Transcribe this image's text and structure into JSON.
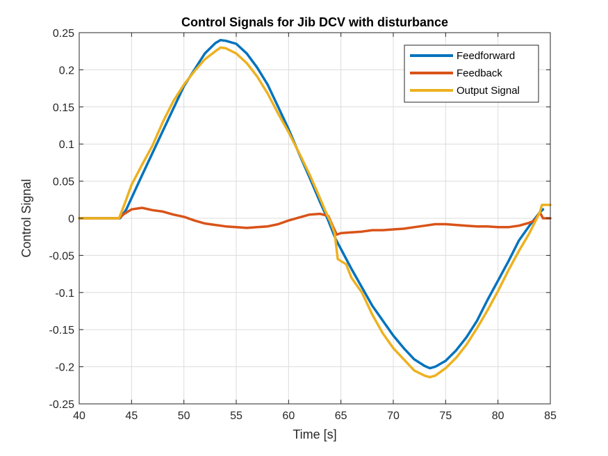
{
  "chart_data": {
    "type": "line",
    "title": "Control Signals for Jib DCV with disturbance",
    "xlabel": "Time [s]",
    "ylabel": "Control Signal",
    "xlim": [
      40,
      85
    ],
    "ylim": [
      -0.25,
      0.25
    ],
    "xticks": [
      40,
      45,
      50,
      55,
      60,
      65,
      70,
      75,
      80,
      85
    ],
    "yticks": [
      -0.25,
      -0.2,
      -0.15,
      -0.1,
      -0.05,
      0,
      0.05,
      0.1,
      0.15,
      0.2,
      0.25
    ],
    "ytick_labels": [
      "-0.25",
      "-0.2",
      "-0.15",
      "-0.1",
      "-0.05",
      "0",
      "0.05",
      "0.1",
      "0.15",
      "0.2",
      "0.25"
    ],
    "xtick_labels": [
      "40",
      "45",
      "50",
      "55",
      "60",
      "65",
      "70",
      "75",
      "80",
      "85"
    ],
    "grid": true,
    "legend_position": "top-right",
    "series": [
      {
        "name": "Feedforward",
        "color": "#0072BD",
        "points": [
          [
            40,
            0
          ],
          [
            43.9,
            0
          ],
          [
            44.5,
            0.012
          ],
          [
            46,
            0.058
          ],
          [
            48,
            0.118
          ],
          [
            50,
            0.178
          ],
          [
            51,
            0.2
          ],
          [
            52,
            0.222
          ],
          [
            53,
            0.236
          ],
          [
            53.5,
            0.24
          ],
          [
            54,
            0.239
          ],
          [
            55,
            0.235
          ],
          [
            56,
            0.222
          ],
          [
            57,
            0.203
          ],
          [
            58,
            0.18
          ],
          [
            59,
            0.15
          ],
          [
            60,
            0.12
          ],
          [
            61,
            0.087
          ],
          [
            62,
            0.055
          ],
          [
            63,
            0.022
          ],
          [
            63.7,
            0
          ],
          [
            64.5,
            -0.028
          ],
          [
            66,
            -0.068
          ],
          [
            68,
            -0.118
          ],
          [
            70,
            -0.158
          ],
          [
            71,
            -0.175
          ],
          [
            72,
            -0.19
          ],
          [
            73,
            -0.199
          ],
          [
            73.5,
            -0.202
          ],
          [
            74,
            -0.2
          ],
          [
            75,
            -0.192
          ],
          [
            76,
            -0.178
          ],
          [
            77,
            -0.16
          ],
          [
            78,
            -0.138
          ],
          [
            79,
            -0.11
          ],
          [
            80,
            -0.084
          ],
          [
            81,
            -0.058
          ],
          [
            82,
            -0.03
          ],
          [
            83,
            -0.01
          ],
          [
            84,
            0.008
          ],
          [
            84.3,
            0.012
          ]
        ]
      },
      {
        "name": "Feedback",
        "color": "#D95319",
        "points": [
          [
            40,
            0
          ],
          [
            43.8,
            0
          ],
          [
            44.3,
            0.006
          ],
          [
            45,
            0.012
          ],
          [
            46,
            0.014
          ],
          [
            47,
            0.011
          ],
          [
            48,
            0.009
          ],
          [
            49,
            0.005
          ],
          [
            50,
            0.002
          ],
          [
            51,
            -0.003
          ],
          [
            52,
            -0.007
          ],
          [
            53,
            -0.009
          ],
          [
            54,
            -0.011
          ],
          [
            55,
            -0.012
          ],
          [
            56,
            -0.013
          ],
          [
            57,
            -0.012
          ],
          [
            58,
            -0.011
          ],
          [
            59,
            -0.008
          ],
          [
            60,
            -0.003
          ],
          [
            61,
            0.001
          ],
          [
            62,
            0.005
          ],
          [
            63,
            0.006
          ],
          [
            63.8,
            0.003
          ],
          [
            64.2,
            -0.01
          ],
          [
            64.6,
            -0.022
          ],
          [
            65,
            -0.02
          ],
          [
            66,
            -0.019
          ],
          [
            67,
            -0.018
          ],
          [
            68,
            -0.016
          ],
          [
            69,
            -0.016
          ],
          [
            70,
            -0.015
          ],
          [
            71,
            -0.014
          ],
          [
            72,
            -0.012
          ],
          [
            73,
            -0.01
          ],
          [
            74,
            -0.008
          ],
          [
            75,
            -0.008
          ],
          [
            76,
            -0.009
          ],
          [
            77,
            -0.01
          ],
          [
            78,
            -0.011
          ],
          [
            79,
            -0.011
          ],
          [
            80,
            -0.012
          ],
          [
            81,
            -0.012
          ],
          [
            82,
            -0.01
          ],
          [
            83,
            -0.006
          ],
          [
            83.5,
            -0.003
          ],
          [
            84,
            0.008
          ],
          [
            84.3,
            0
          ],
          [
            85,
            0
          ]
        ]
      },
      {
        "name": "Output Signal",
        "color": "#EDB120",
        "points": [
          [
            40,
            0
          ],
          [
            43.8,
            0
          ],
          [
            44.3,
            0.018
          ],
          [
            45,
            0.045
          ],
          [
            46,
            0.072
          ],
          [
            47,
            0.098
          ],
          [
            48,
            0.13
          ],
          [
            49,
            0.158
          ],
          [
            50,
            0.18
          ],
          [
            51,
            0.198
          ],
          [
            52,
            0.214
          ],
          [
            53,
            0.225
          ],
          [
            53.5,
            0.23
          ],
          [
            54,
            0.229
          ],
          [
            55,
            0.222
          ],
          [
            56,
            0.209
          ],
          [
            57,
            0.191
          ],
          [
            58,
            0.168
          ],
          [
            59,
            0.141
          ],
          [
            60,
            0.116
          ],
          [
            61,
            0.088
          ],
          [
            62,
            0.059
          ],
          [
            63,
            0.027
          ],
          [
            63.5,
            0.01
          ],
          [
            64,
            -0.005
          ],
          [
            64.4,
            -0.02
          ],
          [
            64.7,
            -0.055
          ],
          [
            65.5,
            -0.062
          ],
          [
            66,
            -0.08
          ],
          [
            67,
            -0.1
          ],
          [
            68,
            -0.13
          ],
          [
            69,
            -0.155
          ],
          [
            70,
            -0.175
          ],
          [
            71,
            -0.19
          ],
          [
            72,
            -0.205
          ],
          [
            73,
            -0.212
          ],
          [
            73.5,
            -0.214
          ],
          [
            74,
            -0.212
          ],
          [
            75,
            -0.202
          ],
          [
            76,
            -0.188
          ],
          [
            77,
            -0.17
          ],
          [
            78,
            -0.148
          ],
          [
            79,
            -0.124
          ],
          [
            80,
            -0.098
          ],
          [
            81,
            -0.07
          ],
          [
            82,
            -0.044
          ],
          [
            83,
            -0.02
          ],
          [
            84,
            0.008
          ],
          [
            84.2,
            0.018
          ],
          [
            85,
            0.018
          ]
        ]
      }
    ]
  }
}
